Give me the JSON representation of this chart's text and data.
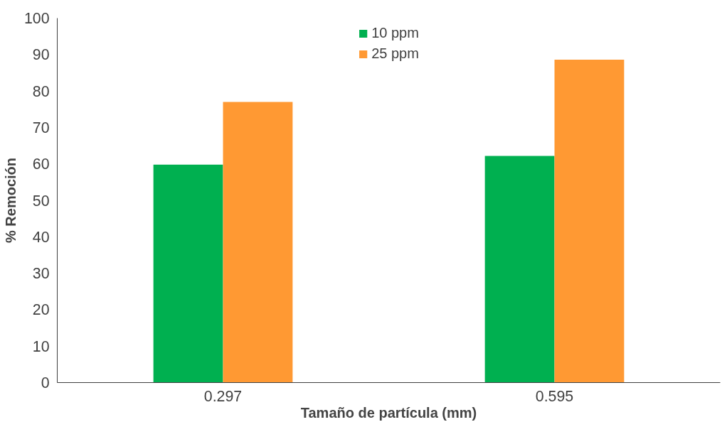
{
  "chart_data": {
    "type": "bar",
    "xlabel": "Tamaño de partícula (mm)",
    "ylabel": "% Remoción",
    "categories": [
      "0.297",
      "0.595"
    ],
    "series": [
      {
        "name": "10 ppm",
        "color": "#00b050",
        "values": [
          59.8,
          62.2
        ]
      },
      {
        "name": "25 ppm",
        "color": "#ff9933",
        "values": [
          77,
          88.6
        ]
      }
    ],
    "ylim": [
      0,
      100
    ],
    "yticks": [
      0,
      10,
      20,
      30,
      40,
      50,
      60,
      70,
      80,
      90,
      100
    ],
    "grid": false,
    "legend": "top"
  }
}
